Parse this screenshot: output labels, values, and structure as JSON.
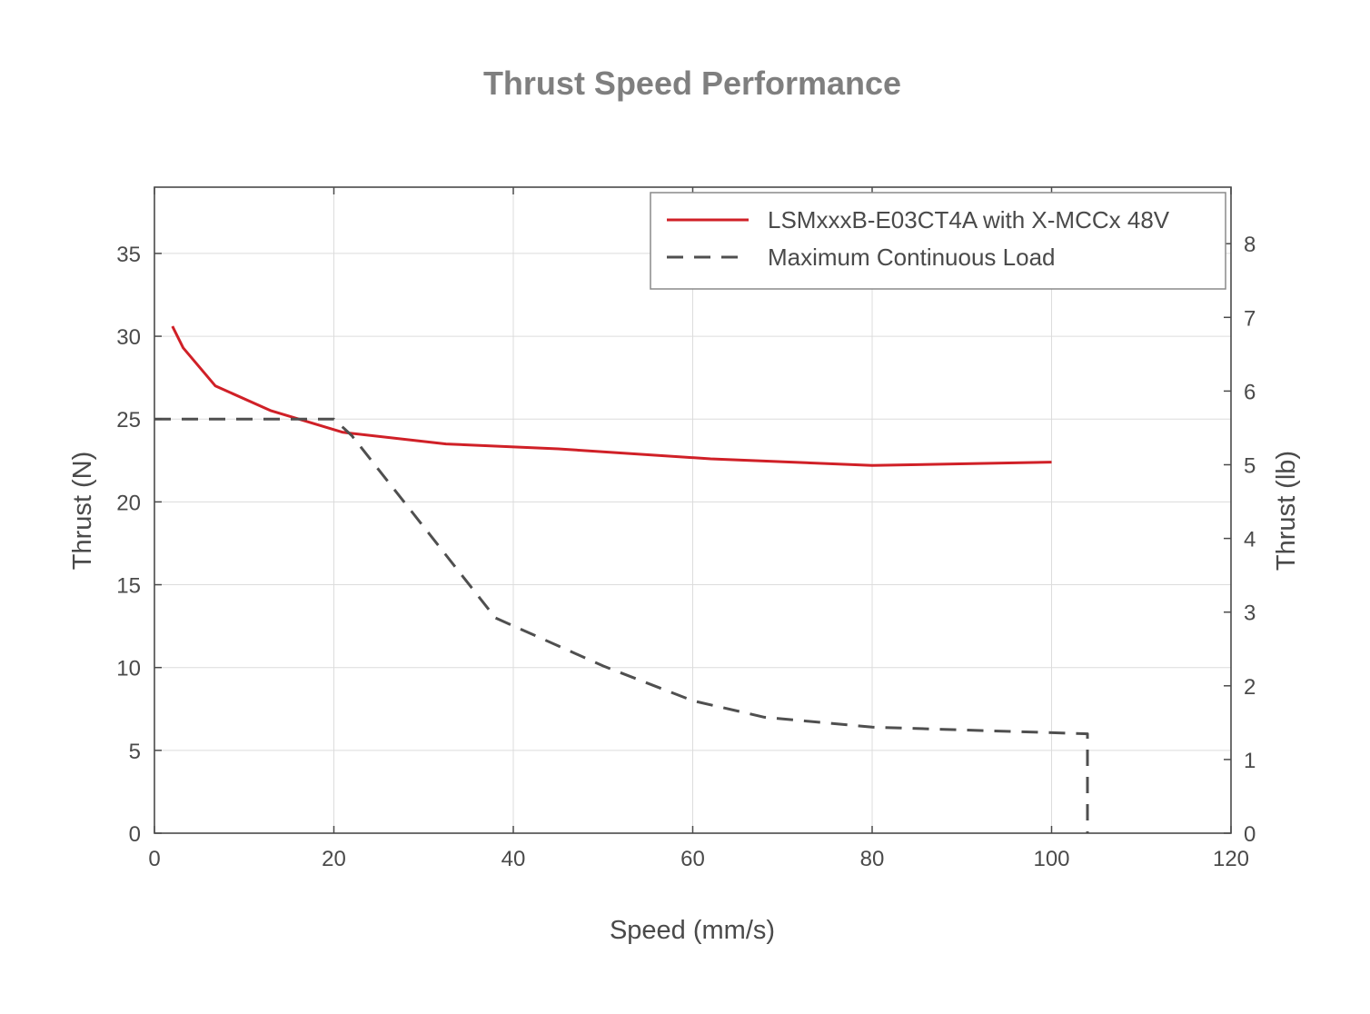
{
  "chart_data": {
    "type": "line",
    "title": "Thrust Speed Performance",
    "xlabel": "Speed (mm/s)",
    "ylabel": "Thrust (N)",
    "y2label": "Thrust (lb)",
    "xlim": [
      0,
      120
    ],
    "ylim": [
      0,
      39
    ],
    "y2lim": [
      0,
      8.767
    ],
    "xticks": [
      "0",
      "20",
      "40",
      "60",
      "80",
      "100",
      "120"
    ],
    "yticks": [
      "0",
      "5",
      "10",
      "15",
      "20",
      "25",
      "30",
      "35"
    ],
    "y2ticks": [
      "0",
      "1",
      "2",
      "3",
      "4",
      "5",
      "6",
      "7",
      "8"
    ],
    "grid": true,
    "legend_position": "top-right",
    "series": [
      {
        "name": "LSMxxxB-E03CT4A with X-MCCx 48V",
        "color": "#d02027",
        "style": "solid",
        "x": [
          2,
          3.2,
          6.8,
          13,
          21,
          32.5,
          45,
          62,
          80,
          100
        ],
        "y": [
          30.6,
          29.3,
          27.0,
          25.5,
          24.2,
          23.5,
          23.2,
          22.6,
          22.2,
          22.4
        ]
      },
      {
        "name": "Maximum Continuous Load",
        "color": "#4f4f4f",
        "style": "dashed",
        "x": [
          0,
          20,
          22,
          30,
          38,
          50,
          60,
          68,
          80,
          104,
          104
        ],
        "y": [
          25.0,
          25.0,
          24.0,
          18.5,
          13.0,
          10.1,
          8.0,
          7.0,
          6.4,
          6.0,
          0
        ]
      }
    ]
  }
}
